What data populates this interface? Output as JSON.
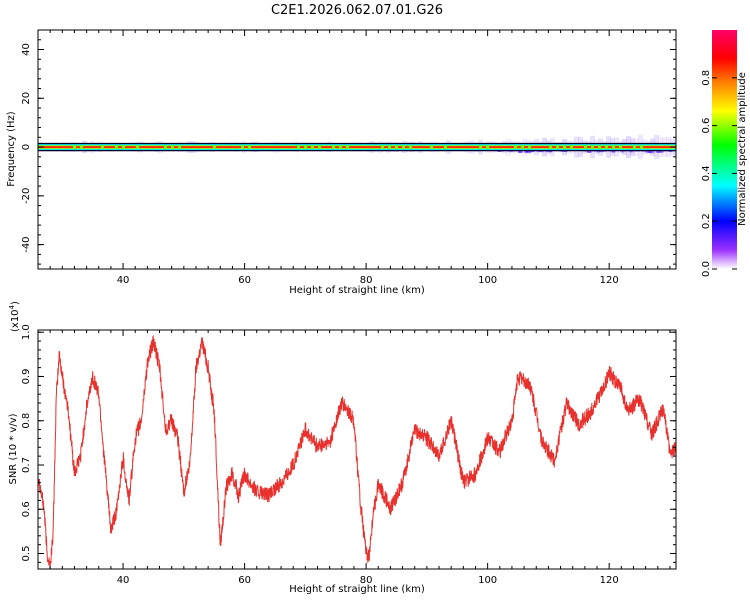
{
  "title": "C2E1.2026.062.07.01.G26",
  "chart_data": [
    {
      "type": "heatmap",
      "name": "spectrogram",
      "xlabel": "Height of straight line (km)",
      "ylabel": "Frequency (Hz)",
      "xlim": [
        26,
        131
      ],
      "ylim": [
        -50,
        48
      ],
      "xticks": [
        40,
        60,
        80,
        100,
        120
      ],
      "yticks": [
        -40,
        -20,
        0,
        20,
        40
      ],
      "xtick_labels": [
        "40",
        "60",
        "80",
        "100",
        "120"
      ],
      "ytick_labels": [
        "-40",
        "-20",
        "0",
        "20",
        "40"
      ],
      "band_center_hz": 0,
      "band_halfwidth_hz": 1.5,
      "colorbar": {
        "label": "Normalized spectral amplitude",
        "range": [
          0,
          1
        ],
        "ticks": [
          0.0,
          0.2,
          0.4,
          0.6,
          0.8
        ],
        "tick_labels": [
          "0.0",
          "0.2",
          "0.4",
          "0.6",
          "0.8"
        ],
        "colors": [
          "#ffffff",
          "#7b00ff",
          "#0000ff",
          "#00ffff",
          "#00ff00",
          "#ffff00",
          "#ff8000",
          "#ff0000",
          "#ff0080"
        ]
      }
    },
    {
      "type": "line",
      "name": "snr",
      "xlabel": "Height of straight line (km)",
      "ylabel": "SNR (10 * v/v)",
      "yscale_label": "(x10",
      "yscale_exp": "4",
      "yscale_close": ")",
      "xlim": [
        26,
        131
      ],
      "ylim": [
        0.465,
        1.005
      ],
      "xticks": [
        40,
        60,
        80,
        100,
        120
      ],
      "yticks": [
        0.5,
        0.6,
        0.7,
        0.8,
        0.9,
        1.0
      ],
      "xtick_labels": [
        "40",
        "60",
        "80",
        "100",
        "120"
      ],
      "ytick_labels": [
        "0.5",
        "0.6",
        "0.7",
        "0.8",
        "0.9",
        "1.0"
      ],
      "color": "#e8302c",
      "x": [
        26,
        27,
        27.5,
        28,
        28.5,
        29,
        29.5,
        30,
        31,
        32,
        33,
        34,
        35,
        36,
        37,
        38,
        39,
        40,
        40.5,
        41,
        42,
        43,
        44,
        45,
        46,
        47,
        48,
        49,
        50,
        51,
        52,
        53,
        54,
        55,
        56,
        57,
        58,
        59,
        60,
        62,
        64,
        66,
        68,
        70,
        72,
        74,
        76,
        78,
        79,
        80,
        80.5,
        81,
        82,
        84,
        86,
        88,
        90,
        92,
        94,
        96,
        98,
        100,
        102,
        104,
        105,
        107,
        109,
        111,
        113,
        115,
        117,
        119,
        120,
        122,
        123,
        125,
        127,
        129,
        130,
        131
      ],
      "y": [
        0.68,
        0.6,
        0.5,
        0.47,
        0.55,
        0.85,
        0.95,
        0.9,
        0.82,
        0.68,
        0.72,
        0.83,
        0.9,
        0.86,
        0.7,
        0.55,
        0.6,
        0.72,
        0.66,
        0.62,
        0.76,
        0.8,
        0.93,
        0.98,
        0.92,
        0.78,
        0.8,
        0.76,
        0.64,
        0.7,
        0.92,
        0.98,
        0.92,
        0.82,
        0.52,
        0.65,
        0.68,
        0.63,
        0.68,
        0.64,
        0.63,
        0.66,
        0.7,
        0.78,
        0.74,
        0.75,
        0.84,
        0.8,
        0.62,
        0.5,
        0.49,
        0.57,
        0.66,
        0.6,
        0.66,
        0.78,
        0.76,
        0.72,
        0.8,
        0.66,
        0.68,
        0.76,
        0.73,
        0.8,
        0.9,
        0.88,
        0.75,
        0.71,
        0.84,
        0.79,
        0.82,
        0.87,
        0.91,
        0.87,
        0.82,
        0.85,
        0.77,
        0.83,
        0.72,
        0.74
      ]
    }
  ]
}
